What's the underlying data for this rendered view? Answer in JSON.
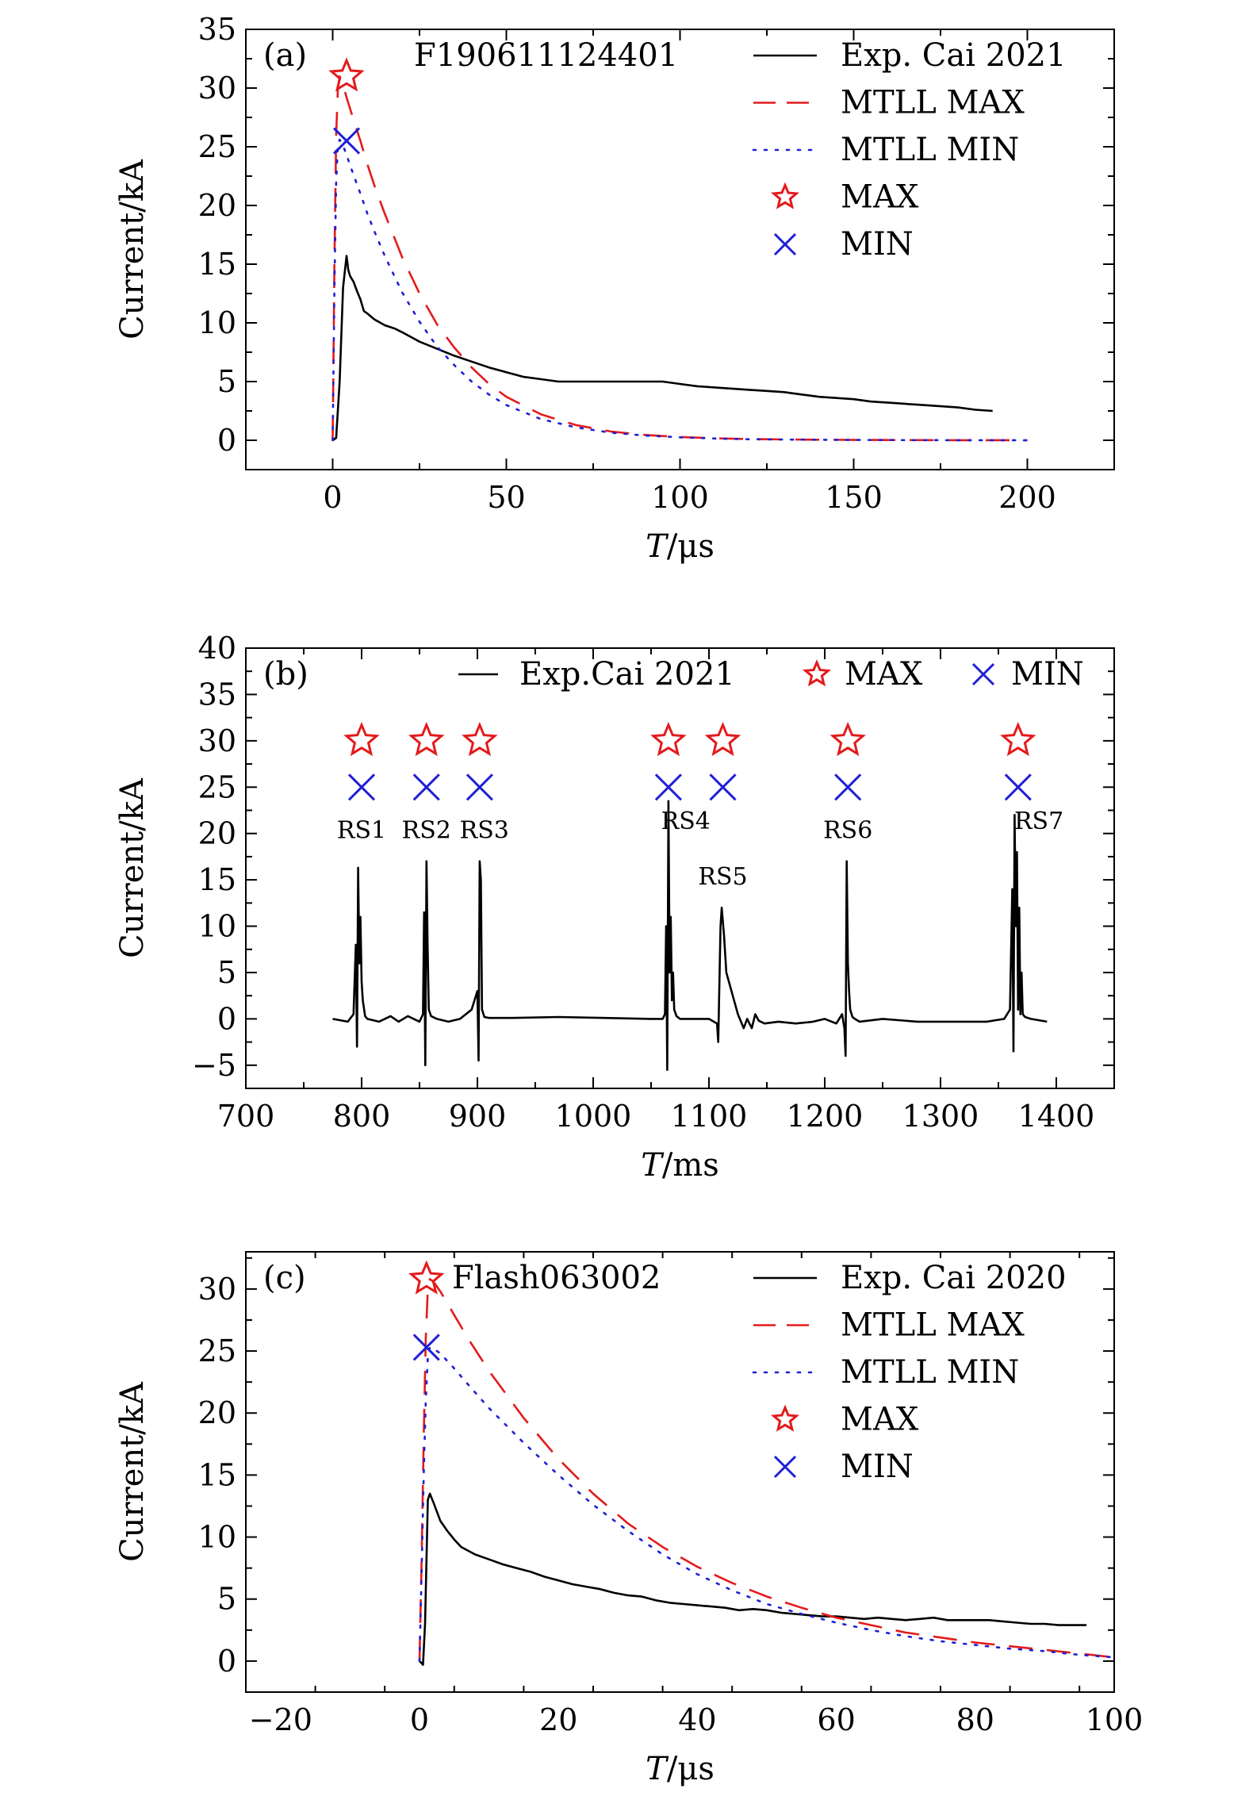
{
  "chart_data": [
    {
      "type": "line",
      "panel_label": "(a)",
      "annotation": "F190611124401",
      "xlabel_italic": "T",
      "xlabel_unit": "/μs",
      "ylabel": "Current/kA",
      "xlim": [
        -25,
        225
      ],
      "ylim": [
        -2.5,
        35
      ],
      "xticks": [
        0,
        50,
        100,
        150,
        200
      ],
      "yticks": [
        0,
        5,
        10,
        15,
        20,
        25,
        30,
        35
      ],
      "legend_position": "top-right",
      "colors": {
        "exp": "#000000",
        "max": "#e41a1c",
        "min": "#1f1fd6"
      },
      "series": [
        {
          "name": "Exp. Cai 2021",
          "style": "solid",
          "color": "#000000",
          "x": [
            0,
            1,
            2,
            3,
            4,
            4.5,
            5,
            6,
            7,
            8,
            9,
            10,
            12,
            15,
            18,
            20,
            25,
            30,
            35,
            40,
            45,
            50,
            55,
            60,
            65,
            70,
            75,
            80,
            85,
            90,
            95,
            100,
            105,
            110,
            115,
            120,
            125,
            130,
            135,
            140,
            145,
            150,
            155,
            160,
            165,
            170,
            175,
            180,
            185,
            190
          ],
          "y": [
            0,
            0.2,
            5,
            13,
            15.7,
            14.5,
            14,
            13.5,
            12.7,
            12,
            11,
            10.8,
            10.3,
            9.8,
            9.5,
            9.2,
            8.4,
            7.8,
            7.2,
            6.7,
            6.2,
            5.8,
            5.4,
            5.2,
            5,
            5,
            5,
            5,
            5,
            5,
            5,
            4.8,
            4.6,
            4.5,
            4.4,
            4.3,
            4.2,
            4.1,
            3.9,
            3.7,
            3.6,
            3.5,
            3.3,
            3.2,
            3.1,
            3.0,
            2.9,
            2.8,
            2.6,
            2.5
          ]
        },
        {
          "name": "MTLL MAX",
          "style": "dashed",
          "color": "#e41a1c",
          "x": [
            0,
            0.5,
            1,
            1.5,
            2,
            3,
            4,
            6,
            8,
            10,
            12,
            15,
            20,
            25,
            30,
            35,
            40,
            45,
            50,
            60,
            70,
            80,
            90,
            100,
            110,
            120,
            140,
            160,
            180,
            200
          ],
          "y": [
            0,
            15,
            26,
            30,
            31,
            30.3,
            29.2,
            27.3,
            25.5,
            23.5,
            21.7,
            19.3,
            15.6,
            12.5,
            9.9,
            7.9,
            6.2,
            4.8,
            3.7,
            2.2,
            1.3,
            0.75,
            0.45,
            0.28,
            0.17,
            0.1,
            0.05,
            0.02,
            0.01,
            0
          ]
        },
        {
          "name": "MTLL MIN",
          "style": "dotted",
          "color": "#1f1fd6",
          "x": [
            0,
            0.5,
            1,
            1.5,
            2,
            3,
            4,
            6,
            8,
            10,
            12,
            15,
            20,
            25,
            30,
            35,
            40,
            45,
            50,
            60,
            70,
            80,
            90,
            100,
            110,
            120,
            140,
            160,
            180,
            200
          ],
          "y": [
            0,
            13,
            22,
            25.2,
            25.6,
            25.1,
            24.3,
            22.6,
            21,
            19.3,
            17.8,
            15.7,
            12.6,
            10.1,
            8,
            6.4,
            5,
            3.9,
            3.0,
            1.8,
            1.1,
            0.65,
            0.4,
            0.25,
            0.15,
            0.09,
            0.04,
            0.02,
            0.01,
            0
          ]
        },
        {
          "name": "MAX",
          "style": "marker-star",
          "color": "#e41a1c",
          "x": [
            4
          ],
          "y": [
            31
          ]
        },
        {
          "name": "MIN",
          "style": "marker-x",
          "color": "#1f1fd6",
          "x": [
            4
          ],
          "y": [
            25.5
          ]
        }
      ]
    },
    {
      "type": "line",
      "panel_label": "(b)",
      "xlabel_italic": "T",
      "xlabel_unit": "/ms",
      "ylabel": "Current/kA",
      "xlim": [
        700,
        1450
      ],
      "ylim": [
        -7.5,
        40
      ],
      "xticks": [
        700,
        800,
        900,
        1000,
        1100,
        1200,
        1300,
        1400
      ],
      "yticks": [
        -5,
        0,
        5,
        10,
        15,
        20,
        25,
        30,
        35,
        40
      ],
      "legend_position": "top",
      "series": [
        {
          "name": "Exp.Cai 2021",
          "style": "solid",
          "color": "#000000",
          "x": [
            775,
            788,
            793,
            795,
            796,
            797,
            798,
            799,
            800,
            801,
            803,
            805,
            815,
            825,
            832,
            840,
            850,
            853,
            854,
            855,
            856,
            857,
            858,
            860,
            865,
            875,
            885,
            895,
            900,
            901,
            902,
            903,
            904,
            906,
            910,
            930,
            970,
            1010,
            1050,
            1060,
            1062,
            1063,
            1064,
            1065,
            1066,
            1067,
            1068,
            1069,
            1070,
            1072,
            1075,
            1085,
            1100,
            1107,
            1108,
            1110,
            1111,
            1113,
            1115,
            1125,
            1130,
            1133,
            1137,
            1140,
            1143,
            1148,
            1160,
            1175,
            1190,
            1200,
            1210,
            1215,
            1217,
            1218,
            1219,
            1220,
            1221,
            1222,
            1224,
            1226,
            1230,
            1250,
            1280,
            1310,
            1340,
            1355,
            1360,
            1362,
            1363,
            1364,
            1365,
            1366,
            1367,
            1368,
            1369,
            1370,
            1371,
            1373,
            1378,
            1392
          ],
          "y": [
            0,
            -0.3,
            0.5,
            8,
            -3,
            16.3,
            6,
            11,
            4,
            2,
            0.3,
            0,
            -0.3,
            0.3,
            -0.3,
            0.3,
            -0.3,
            0.5,
            11.5,
            -5,
            17,
            8,
            1,
            0.3,
            0,
            -0.3,
            0,
            1,
            3,
            -4.5,
            17,
            15,
            1,
            0.2,
            0.1,
            0.1,
            0.2,
            0.1,
            0,
            0,
            0.5,
            10,
            -5.5,
            23.5,
            5,
            11,
            2,
            5,
            1,
            0.3,
            0,
            0,
            0,
            -0.5,
            -2.5,
            10,
            12,
            9,
            5,
            0.5,
            -1,
            0,
            -1,
            0.5,
            -0.2,
            -0.5,
            -0.3,
            -0.5,
            -0.3,
            0,
            -0.5,
            0.5,
            -1,
            -4,
            17,
            6,
            3,
            1,
            0.2,
            0,
            -0.3,
            0,
            -0.3,
            -0.3,
            -0.3,
            0,
            1,
            14,
            -3.5,
            22,
            10,
            18,
            1,
            12,
            0.5,
            5,
            0.5,
            0.2,
            0,
            -0.3
          ]
        },
        {
          "name": "MAX",
          "style": "marker-star",
          "color": "#e41a1c",
          "x": [
            800,
            856,
            902,
            1065,
            1112,
            1220,
            1367
          ],
          "y": [
            30,
            30,
            30,
            30,
            30,
            30,
            30
          ]
        },
        {
          "name": "MIN",
          "style": "marker-x",
          "color": "#1f1fd6",
          "x": [
            800,
            856,
            902,
            1065,
            1112,
            1220,
            1367
          ],
          "y": [
            25,
            25,
            25,
            25,
            25,
            25,
            25
          ]
        }
      ],
      "annotations": [
        {
          "text": "RS1",
          "x": 800,
          "y": 19.5
        },
        {
          "text": "RS2",
          "x": 856,
          "y": 19.5
        },
        {
          "text": "RS3",
          "x": 906,
          "y": 19.5
        },
        {
          "text": "RS4",
          "x": 1080,
          "y": 20.5
        },
        {
          "text": "RS5",
          "x": 1112,
          "y": 14.5
        },
        {
          "text": "RS6",
          "x": 1220,
          "y": 19.5
        },
        {
          "text": "RS7",
          "x": 1385,
          "y": 20.5
        }
      ]
    },
    {
      "type": "line",
      "panel_label": "(c)",
      "annotation": "Flash063002",
      "xlabel_italic": "T",
      "xlabel_unit": "/μs",
      "ylabel": "Current/kA",
      "xlim": [
        -25,
        100
      ],
      "ylim": [
        -2.5,
        33
      ],
      "xticks": [
        -20,
        0,
        20,
        40,
        60,
        80,
        100
      ],
      "yticks": [
        0,
        5,
        10,
        15,
        20,
        25,
        30
      ],
      "legend_position": "top-right",
      "series": [
        {
          "name": "Exp. Cai 2020",
          "style": "solid",
          "color": "#000000",
          "x": [
            0,
            0.5,
            0.8,
            1.2,
            1.5,
            2,
            3,
            4,
            5,
            6,
            8,
            10,
            12,
            14,
            16,
            18,
            20,
            22,
            24,
            26,
            28,
            30,
            32,
            34,
            36,
            38,
            40,
            42,
            44,
            46,
            48,
            50,
            52,
            54,
            56,
            58,
            60,
            62,
            64,
            66,
            68,
            70,
            72,
            74,
            76,
            78,
            80,
            82,
            84,
            86,
            88,
            90,
            92,
            94,
            96
          ],
          "y": [
            0,
            -0.3,
            3,
            13,
            13.5,
            12.8,
            11.3,
            10.5,
            9.8,
            9.2,
            8.6,
            8.2,
            7.8,
            7.5,
            7.2,
            6.8,
            6.5,
            6.2,
            6.0,
            5.8,
            5.5,
            5.3,
            5.2,
            4.9,
            4.7,
            4.6,
            4.5,
            4.4,
            4.3,
            4.1,
            4.2,
            4.1,
            3.9,
            3.8,
            3.7,
            3.6,
            3.6,
            3.5,
            3.4,
            3.5,
            3.4,
            3.3,
            3.4,
            3.5,
            3.3,
            3.3,
            3.3,
            3.3,
            3.2,
            3.1,
            3.0,
            3.0,
            2.9,
            2.9,
            2.9
          ]
        },
        {
          "name": "MTLL MAX",
          "style": "dashed",
          "color": "#e41a1c",
          "x": [
            0,
            0.3,
            0.6,
            0.9,
            1.2,
            1.5,
            2,
            3,
            5,
            7,
            10,
            15,
            20,
            25,
            30,
            35,
            40,
            45,
            50,
            55,
            60,
            65,
            70,
            75,
            80,
            85,
            90,
            95,
            100
          ],
          "y": [
            0,
            8,
            18,
            26,
            30,
            30.8,
            30.6,
            29.8,
            27.9,
            26,
            23.4,
            19.6,
            16.3,
            13.5,
            11.1,
            9.2,
            7.6,
            6.3,
            5.2,
            4.3,
            3.5,
            2.9,
            2.3,
            1.9,
            1.5,
            1.2,
            0.9,
            0.6,
            0.3
          ]
        },
        {
          "name": "MTLL MIN",
          "style": "dotted",
          "color": "#1f1fd6",
          "x": [
            0,
            0.3,
            0.6,
            0.9,
            1.2,
            1.5,
            2,
            3,
            5,
            7,
            10,
            15,
            20,
            25,
            30,
            35,
            40,
            45,
            50,
            55,
            60,
            65,
            70,
            75,
            80,
            85,
            90,
            95,
            100
          ],
          "y": [
            0,
            7,
            15,
            21,
            24.5,
            25.3,
            25.2,
            24.8,
            23.6,
            22.3,
            20.4,
            17.6,
            15.0,
            12.6,
            10.5,
            8.6,
            7.0,
            5.7,
            4.6,
            3.8,
            3.1,
            2.5,
            2.0,
            1.6,
            1.3,
            1.0,
            0.8,
            0.5,
            0.3
          ]
        },
        {
          "name": "MAX",
          "style": "marker-star",
          "color": "#e41a1c",
          "x": [
            1
          ],
          "y": [
            30.8
          ]
        },
        {
          "name": "MIN",
          "style": "marker-x",
          "color": "#1f1fd6",
          "x": [
            1
          ],
          "y": [
            25.3
          ]
        }
      ]
    }
  ]
}
